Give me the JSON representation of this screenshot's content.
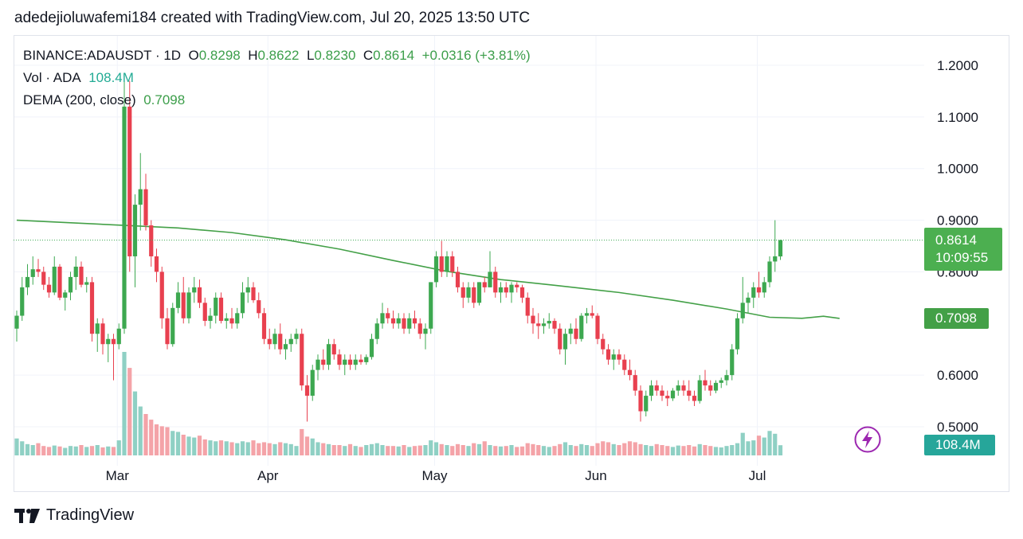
{
  "header": {
    "attribution": "adedejioluwafemi184 created with TradingView.com, Jul 20, 2025 13:50 UTC"
  },
  "legend": {
    "symbol": "BINANCE:ADAUSDT · 1D",
    "o_label": "O",
    "o_value": "0.8298",
    "h_label": "H",
    "h_value": "0.8622",
    "l_label": "L",
    "l_value": "0.8230",
    "c_label": "C",
    "c_value": "0.8614",
    "change": "+0.0316 (+3.81%)",
    "vol_label": "Vol · ADA",
    "vol_value": "108.4M",
    "dema_label": "DEMA (200, close)",
    "dema_value": "0.7098"
  },
  "badges": {
    "price": "0.8614",
    "countdown": "10:09:55",
    "dema": "0.7098",
    "volume": "108.4M"
  },
  "footer": {
    "brand": "TradingView"
  },
  "colors": {
    "up": "#22ab94",
    "down": "#f23645",
    "up_candle": "#3da850",
    "down_candle": "#e8404f",
    "dema": "#43a047",
    "vol_up": "#8fd0c4",
    "vol_down": "#f4a3a8"
  },
  "chart_data": {
    "type": "candlestick",
    "symbol": "BINANCE:ADAUSDT",
    "interval": "1D",
    "y_ticks": [
      "1.2000",
      "1.1000",
      "1.0000",
      "0.9000",
      "0.8000",
      "0.6000",
      "0.5000"
    ],
    "x_ticks": [
      "Mar",
      "Apr",
      "May",
      "Jun",
      "Jul"
    ],
    "ylim": [
      0.46,
      1.24
    ],
    "last_price": 0.8614,
    "dema_value": 0.7098,
    "candles": [
      [
        0.69,
        0.725,
        0.665,
        0.715
      ],
      [
        0.715,
        0.79,
        0.705,
        0.77
      ],
      [
        0.77,
        0.815,
        0.755,
        0.79
      ],
      [
        0.79,
        0.83,
        0.775,
        0.805
      ],
      [
        0.805,
        0.825,
        0.79,
        0.8
      ],
      [
        0.8,
        0.81,
        0.765,
        0.775
      ],
      [
        0.775,
        0.79,
        0.75,
        0.76
      ],
      [
        0.76,
        0.83,
        0.755,
        0.81
      ],
      [
        0.81,
        0.815,
        0.745,
        0.75
      ],
      [
        0.75,
        0.765,
        0.725,
        0.76
      ],
      [
        0.76,
        0.8,
        0.745,
        0.79
      ],
      [
        0.79,
        0.83,
        0.765,
        0.81
      ],
      [
        0.81,
        0.82,
        0.77,
        0.775
      ],
      [
        0.775,
        0.79,
        0.76,
        0.78
      ],
      [
        0.78,
        0.79,
        0.665,
        0.68
      ],
      [
        0.68,
        0.71,
        0.645,
        0.7
      ],
      [
        0.7,
        0.71,
        0.64,
        0.66
      ],
      [
        0.66,
        0.68,
        0.625,
        0.67
      ],
      [
        0.67,
        0.68,
        0.59,
        0.66
      ],
      [
        0.66,
        0.7,
        0.65,
        0.69
      ],
      [
        0.69,
        1.18,
        0.68,
        1.12
      ],
      [
        1.12,
        1.17,
        0.8,
        0.83
      ],
      [
        0.83,
        0.95,
        0.77,
        0.93
      ],
      [
        0.93,
        1.03,
        0.88,
        0.96
      ],
      [
        0.96,
        0.99,
        0.88,
        0.89
      ],
      [
        0.89,
        0.9,
        0.81,
        0.83
      ],
      [
        0.83,
        0.845,
        0.78,
        0.8
      ],
      [
        0.8,
        0.81,
        0.69,
        0.71
      ],
      [
        0.71,
        0.73,
        0.65,
        0.66
      ],
      [
        0.66,
        0.74,
        0.655,
        0.73
      ],
      [
        0.73,
        0.78,
        0.72,
        0.76
      ],
      [
        0.76,
        0.79,
        0.7,
        0.71
      ],
      [
        0.71,
        0.77,
        0.7,
        0.76
      ],
      [
        0.76,
        0.79,
        0.74,
        0.77
      ],
      [
        0.77,
        0.785,
        0.73,
        0.74
      ],
      [
        0.74,
        0.75,
        0.695,
        0.705
      ],
      [
        0.705,
        0.73,
        0.69,
        0.715
      ],
      [
        0.715,
        0.76,
        0.7,
        0.75
      ],
      [
        0.75,
        0.76,
        0.7,
        0.705
      ],
      [
        0.705,
        0.72,
        0.69,
        0.71
      ],
      [
        0.71,
        0.73,
        0.69,
        0.7
      ],
      [
        0.7,
        0.73,
        0.69,
        0.72
      ],
      [
        0.72,
        0.78,
        0.71,
        0.76
      ],
      [
        0.76,
        0.79,
        0.74,
        0.77
      ],
      [
        0.77,
        0.78,
        0.74,
        0.745
      ],
      [
        0.745,
        0.76,
        0.71,
        0.72
      ],
      [
        0.72,
        0.73,
        0.66,
        0.67
      ],
      [
        0.67,
        0.69,
        0.65,
        0.66
      ],
      [
        0.66,
        0.69,
        0.65,
        0.68
      ],
      [
        0.68,
        0.7,
        0.64,
        0.65
      ],
      [
        0.65,
        0.67,
        0.63,
        0.66
      ],
      [
        0.66,
        0.68,
        0.645,
        0.67
      ],
      [
        0.67,
        0.69,
        0.66,
        0.68
      ],
      [
        0.68,
        0.69,
        0.57,
        0.58
      ],
      [
        0.58,
        0.6,
        0.51,
        0.56
      ],
      [
        0.56,
        0.62,
        0.55,
        0.61
      ],
      [
        0.61,
        0.64,
        0.59,
        0.63
      ],
      [
        0.63,
        0.65,
        0.61,
        0.62
      ],
      [
        0.62,
        0.67,
        0.61,
        0.66
      ],
      [
        0.66,
        0.67,
        0.63,
        0.64
      ],
      [
        0.64,
        0.65,
        0.61,
        0.62
      ],
      [
        0.62,
        0.64,
        0.6,
        0.63
      ],
      [
        0.63,
        0.64,
        0.61,
        0.62
      ],
      [
        0.62,
        0.64,
        0.61,
        0.63
      ],
      [
        0.63,
        0.64,
        0.62,
        0.625
      ],
      [
        0.625,
        0.64,
        0.62,
        0.635
      ],
      [
        0.635,
        0.68,
        0.63,
        0.67
      ],
      [
        0.67,
        0.71,
        0.66,
        0.7
      ],
      [
        0.7,
        0.74,
        0.69,
        0.72
      ],
      [
        0.72,
        0.73,
        0.7,
        0.71
      ],
      [
        0.71,
        0.725,
        0.69,
        0.7
      ],
      [
        0.7,
        0.72,
        0.69,
        0.71
      ],
      [
        0.71,
        0.72,
        0.68,
        0.69
      ],
      [
        0.69,
        0.72,
        0.68,
        0.71
      ],
      [
        0.71,
        0.725,
        0.69,
        0.7
      ],
      [
        0.7,
        0.71,
        0.67,
        0.68
      ],
      [
        0.68,
        0.7,
        0.65,
        0.69
      ],
      [
        0.69,
        0.78,
        0.68,
        0.78
      ],
      [
        0.78,
        0.84,
        0.77,
        0.83
      ],
      [
        0.83,
        0.86,
        0.79,
        0.8
      ],
      [
        0.8,
        0.84,
        0.79,
        0.83
      ],
      [
        0.83,
        0.84,
        0.79,
        0.8
      ],
      [
        0.8,
        0.81,
        0.76,
        0.77
      ],
      [
        0.77,
        0.78,
        0.73,
        0.75
      ],
      [
        0.75,
        0.78,
        0.74,
        0.77
      ],
      [
        0.77,
        0.78,
        0.73,
        0.74
      ],
      [
        0.74,
        0.78,
        0.735,
        0.78
      ],
      [
        0.78,
        0.79,
        0.76,
        0.77
      ],
      [
        0.77,
        0.84,
        0.77,
        0.8
      ],
      [
        0.8,
        0.81,
        0.75,
        0.76
      ],
      [
        0.76,
        0.78,
        0.74,
        0.77
      ],
      [
        0.77,
        0.78,
        0.75,
        0.76
      ],
      [
        0.76,
        0.78,
        0.74,
        0.775
      ],
      [
        0.775,
        0.78,
        0.76,
        0.77
      ],
      [
        0.77,
        0.775,
        0.74,
        0.75
      ],
      [
        0.75,
        0.76,
        0.7,
        0.715
      ],
      [
        0.715,
        0.73,
        0.68,
        0.7
      ],
      [
        0.7,
        0.72,
        0.67,
        0.695
      ],
      [
        0.695,
        0.71,
        0.68,
        0.7
      ],
      [
        0.7,
        0.72,
        0.69,
        0.705
      ],
      [
        0.705,
        0.71,
        0.68,
        0.69
      ],
      [
        0.69,
        0.7,
        0.64,
        0.65
      ],
      [
        0.65,
        0.69,
        0.62,
        0.68
      ],
      [
        0.68,
        0.7,
        0.66,
        0.69
      ],
      [
        0.69,
        0.71,
        0.66,
        0.67
      ],
      [
        0.67,
        0.72,
        0.665,
        0.715
      ],
      [
        0.715,
        0.73,
        0.7,
        0.72
      ],
      [
        0.72,
        0.735,
        0.71,
        0.715
      ],
      [
        0.715,
        0.72,
        0.66,
        0.67
      ],
      [
        0.67,
        0.68,
        0.64,
        0.65
      ],
      [
        0.65,
        0.66,
        0.62,
        0.63
      ],
      [
        0.63,
        0.65,
        0.61,
        0.64
      ],
      [
        0.64,
        0.65,
        0.62,
        0.63
      ],
      [
        0.63,
        0.64,
        0.6,
        0.61
      ],
      [
        0.61,
        0.63,
        0.59,
        0.6
      ],
      [
        0.6,
        0.61,
        0.56,
        0.57
      ],
      [
        0.57,
        0.58,
        0.51,
        0.53
      ],
      [
        0.53,
        0.57,
        0.52,
        0.56
      ],
      [
        0.56,
        0.59,
        0.55,
        0.58
      ],
      [
        0.58,
        0.59,
        0.56,
        0.57
      ],
      [
        0.57,
        0.58,
        0.55,
        0.56
      ],
      [
        0.56,
        0.57,
        0.54,
        0.555
      ],
      [
        0.555,
        0.575,
        0.55,
        0.57
      ],
      [
        0.57,
        0.59,
        0.56,
        0.58
      ],
      [
        0.58,
        0.59,
        0.56,
        0.57
      ],
      [
        0.57,
        0.59,
        0.55,
        0.56
      ],
      [
        0.56,
        0.57,
        0.54,
        0.55
      ],
      [
        0.55,
        0.6,
        0.545,
        0.59
      ],
      [
        0.59,
        0.61,
        0.57,
        0.58
      ],
      [
        0.58,
        0.59,
        0.56,
        0.57
      ],
      [
        0.57,
        0.59,
        0.565,
        0.585
      ],
      [
        0.585,
        0.595,
        0.575,
        0.59
      ],
      [
        0.59,
        0.61,
        0.58,
        0.6
      ],
      [
        0.6,
        0.66,
        0.59,
        0.65
      ],
      [
        0.65,
        0.72,
        0.64,
        0.71
      ],
      [
        0.71,
        0.79,
        0.7,
        0.74
      ],
      [
        0.74,
        0.76,
        0.72,
        0.75
      ],
      [
        0.75,
        0.78,
        0.73,
        0.77
      ],
      [
        0.77,
        0.8,
        0.75,
        0.76
      ],
      [
        0.76,
        0.79,
        0.75,
        0.78
      ],
      [
        0.78,
        0.83,
        0.77,
        0.82
      ],
      [
        0.82,
        0.9,
        0.8,
        0.83
      ],
      [
        0.8298,
        0.8622,
        0.823,
        0.8614
      ]
    ],
    "volume_millions": [
      180,
      150,
      120,
      110,
      130,
      100,
      90,
      105,
      95,
      80,
      100,
      95,
      110,
      90,
      100,
      110,
      85,
      95,
      90,
      160,
      1100,
      930,
      680,
      520,
      440,
      380,
      330,
      310,
      300,
      260,
      250,
      220,
      200,
      190,
      210,
      170,
      160,
      150,
      160,
      150,
      140,
      130,
      150,
      140,
      160,
      130,
      140,
      130,
      120,
      140,
      130,
      120,
      100,
      280,
      200,
      180,
      140,
      130,
      120,
      110,
      110,
      100,
      120,
      100,
      90,
      110,
      120,
      130,
      110,
      100,
      100,
      95,
      110,
      90,
      100,
      105,
      110,
      160,
      140,
      120,
      110,
      100,
      120,
      110,
      100,
      130,
      120,
      150,
      110,
      100,
      95,
      100,
      110,
      90,
      95,
      130,
      120,
      110,
      100,
      90,
      100,
      120,
      140,
      110,
      100,
      120,
      110,
      100,
      130,
      150,
      140,
      120,
      110,
      130,
      150,
      140,
      120,
      110,
      100,
      120,
      110,
      100,
      90,
      105,
      100,
      110,
      95,
      120,
      110,
      100,
      90,
      85,
      100,
      110,
      130,
      240,
      150,
      160,
      210,
      190,
      260,
      230,
      108.4
    ],
    "dema_series": [
      [
        0,
        0.9
      ],
      [
        20,
        0.89
      ],
      [
        30,
        0.885
      ],
      [
        40,
        0.876
      ],
      [
        50,
        0.862
      ],
      [
        60,
        0.844
      ],
      [
        70,
        0.822
      ],
      [
        80,
        0.801
      ],
      [
        90,
        0.785
      ],
      [
        100,
        0.774
      ],
      [
        112,
        0.76
      ],
      [
        122,
        0.745
      ],
      [
        132,
        0.728
      ],
      [
        140,
        0.712
      ],
      [
        146,
        0.71
      ],
      [
        150,
        0.714
      ],
      [
        153,
        0.7098
      ]
    ]
  }
}
